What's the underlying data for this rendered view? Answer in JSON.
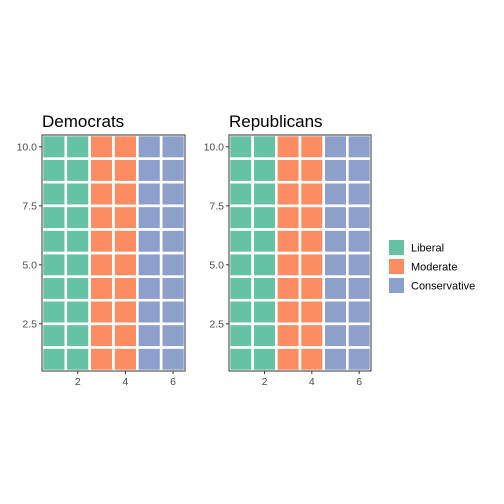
{
  "chart_data": [
    {
      "type": "heatmap",
      "title": "Democrats",
      "xlabel": "",
      "ylabel": "",
      "xlim": [
        0.5,
        6.5
      ],
      "ylim": [
        0.5,
        10.5
      ],
      "x_ticks": [
        2,
        4,
        6
      ],
      "x_tick_labels": [
        "2",
        "4",
        "6"
      ],
      "y_ticks": [
        2.5,
        5.0,
        7.5,
        10.0
      ],
      "y_tick_labels": [
        "2.5",
        "5.0",
        "7.5",
        "10.0"
      ],
      "grid": false,
      "x": [
        1,
        2,
        3,
        4,
        5,
        6
      ],
      "y": [
        1,
        2,
        3,
        4,
        5,
        6,
        7,
        8,
        9,
        10
      ],
      "columns": [
        "Liberal",
        "Liberal",
        "Moderate",
        "Moderate",
        "Conservative",
        "Conservative"
      ]
    },
    {
      "type": "heatmap",
      "title": "Republicans",
      "xlabel": "",
      "ylabel": "",
      "xlim": [
        0.5,
        6.5
      ],
      "ylim": [
        0.5,
        10.5
      ],
      "x_ticks": [
        2,
        4,
        6
      ],
      "x_tick_labels": [
        "2",
        "4",
        "6"
      ],
      "y_ticks": [
        2.5,
        5.0,
        7.5,
        10.0
      ],
      "y_tick_labels": [
        "2.5",
        "5.0",
        "7.5",
        "10.0"
      ],
      "grid": false,
      "x": [
        1,
        2,
        3,
        4,
        5,
        6
      ],
      "y": [
        1,
        2,
        3,
        4,
        5,
        6,
        7,
        8,
        9,
        10
      ],
      "columns": [
        "Liberal",
        "Liberal",
        "Moderate",
        "Moderate",
        "Conservative",
        "Conservative"
      ]
    }
  ],
  "legend": {
    "placement": "right",
    "items": [
      {
        "label": "Liberal",
        "color": "#66c2a5"
      },
      {
        "label": "Moderate",
        "color": "#fc8d62"
      },
      {
        "label": "Conservative",
        "color": "#8da0cb"
      }
    ]
  },
  "colors": {
    "panel_border": "#333333",
    "tile_border": "#ffffff",
    "tick": "#333333",
    "tick_label": "#4d4d4d"
  }
}
